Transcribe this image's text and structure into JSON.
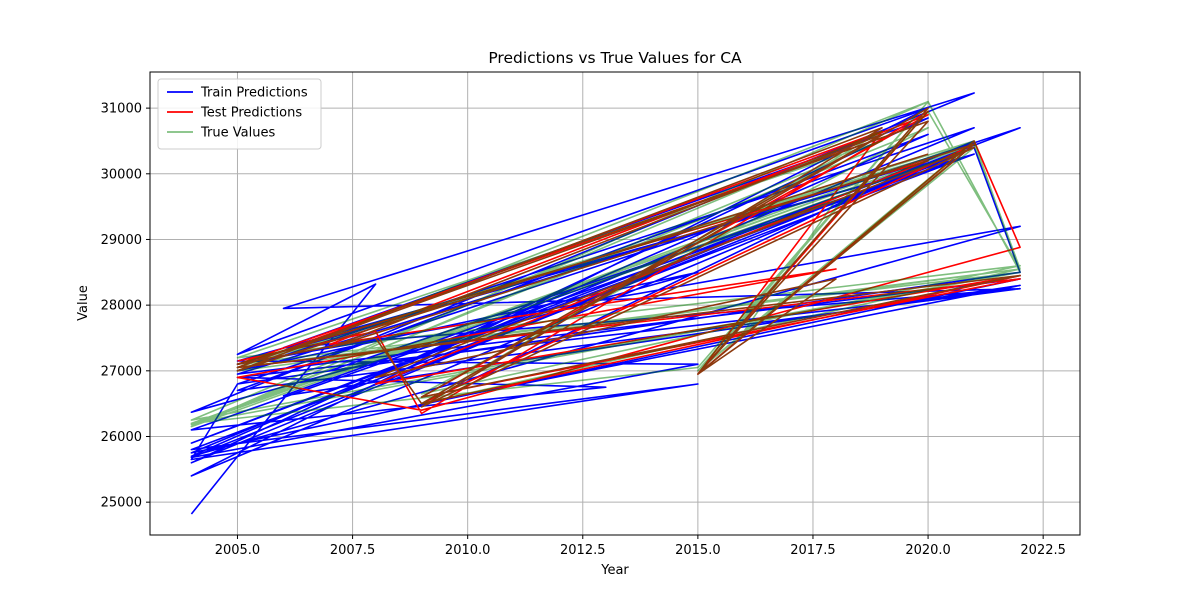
{
  "chart_data": {
    "type": "line",
    "title": "Predictions vs True Values for CA",
    "xlabel": "Year",
    "ylabel": "Value",
    "xlim": [
      2003.1,
      2023.3
    ],
    "ylim": [
      24500,
      31550
    ],
    "xticks": [
      2005.0,
      2007.5,
      2010.0,
      2012.5,
      2015.0,
      2017.5,
      2020.0,
      2022.5
    ],
    "xtick_labels": [
      "2005.0",
      "2007.5",
      "2010.0",
      "2012.5",
      "2015.0",
      "2017.5",
      "2020.0",
      "2022.5"
    ],
    "yticks": [
      25000,
      26000,
      27000,
      28000,
      29000,
      30000,
      31000
    ],
    "ytick_labels": [
      "25000",
      "26000",
      "27000",
      "28000",
      "29000",
      "30000",
      "31000"
    ],
    "grid": true,
    "legend_position": "upper-left",
    "series": [
      {
        "name": "Train Predictions",
        "color": "#0000ff",
        "opacity": 1.0,
        "x": [
          2004,
          2008,
          2005,
          2020,
          2004,
          2021,
          2022,
          2005,
          2004,
          2015,
          2004,
          2021,
          2005,
          2022,
          2004,
          2020,
          2005,
          2022,
          2006,
          2021,
          2004,
          2015,
          2005,
          2021,
          2004,
          2022,
          2005,
          2020,
          2009,
          2022,
          2006,
          2021,
          2004,
          2015,
          2005,
          2020,
          2004,
          2022,
          2005,
          2021,
          2007,
          2021,
          2004,
          2013,
          2005,
          2022,
          2006,
          2020,
          2004,
          2021
        ],
        "y": [
          24820,
          28320,
          27250,
          31000,
          25400,
          30400,
          28500,
          26800,
          25650,
          26800,
          25800,
          30300,
          27100,
          29200,
          25700,
          30600,
          26700,
          28250,
          27950,
          31230,
          26370,
          28500,
          27000,
          30700,
          25750,
          28400,
          26950,
          30200,
          26500,
          28300,
          26620,
          30400,
          25680,
          27100,
          27150,
          30100,
          25900,
          30700,
          26800,
          28400,
          27000,
          30300,
          26100,
          26750,
          26900,
          28250,
          27350,
          30850,
          25600,
          30500
        ]
      },
      {
        "name": "Test Predictions",
        "color": "#ff0000",
        "opacity": 1.0,
        "x": [
          2005,
          2008,
          2009,
          2020,
          2015,
          2021,
          2022,
          2009,
          2005,
          2018,
          2007,
          2020,
          2009,
          2022,
          2005,
          2019,
          2015,
          2021,
          2009,
          2022,
          2008,
          2020,
          2005,
          2019
        ],
        "y": [
          27150,
          27600,
          26350,
          30950,
          26950,
          30500,
          28880,
          26400,
          26900,
          28550,
          27400,
          30900,
          26600,
          28400,
          27050,
          30650,
          26950,
          30450,
          26500,
          28450,
          26800,
          30200,
          27100,
          30550
        ]
      },
      {
        "name": "True Values",
        "color": "#008000",
        "opacity": 0.5,
        "x": [
          2004,
          2020,
          2022,
          2004,
          2021,
          2022,
          2005,
          2020,
          2015,
          2021,
          2022,
          2004,
          2019,
          2009,
          2022,
          2005,
          2021,
          2004,
          2015,
          2020,
          2022,
          2005,
          2021,
          2004,
          2020,
          2009,
          2022,
          2005,
          2019,
          2004,
          2021,
          2015,
          2020,
          2022,
          2005,
          2021,
          2004,
          2018,
          2016,
          2021
        ],
        "y": [
          26150,
          31100,
          28500,
          26200,
          30450,
          28550,
          27000,
          31100,
          27000,
          30500,
          28500,
          26250,
          30650,
          26500,
          28550,
          27050,
          30500,
          26200,
          27050,
          31100,
          28500,
          27100,
          30450,
          26180,
          30700,
          26650,
          28600,
          27200,
          30500,
          26150,
          30400,
          27000,
          30950,
          28550,
          27050,
          30450,
          26200,
          29600,
          27600,
          30450
        ]
      },
      {
        "name": "",
        "color": "#8b3a0e",
        "opacity": 1.0,
        "x": [
          2005,
          2008,
          2009,
          2020,
          2015,
          2021,
          2007,
          2019,
          2009,
          2022,
          2005,
          2020,
          2015,
          2018,
          2008,
          2021,
          2009,
          2019,
          2005,
          2020
        ],
        "y": [
          27100,
          27500,
          26500,
          31000,
          26950,
          30450,
          27350,
          30600,
          26600,
          28450,
          27050,
          30800,
          26950,
          28400,
          26900,
          30400,
          26450,
          30700,
          27000,
          30300
        ]
      }
    ]
  }
}
